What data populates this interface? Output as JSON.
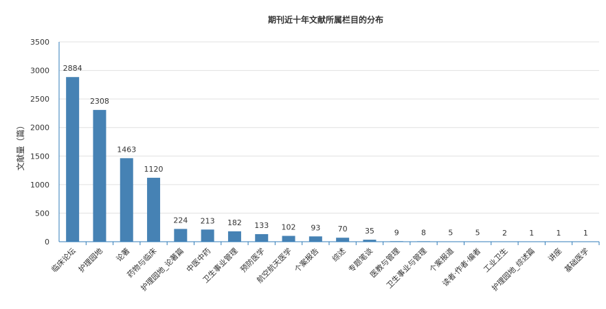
{
  "chart_data": {
    "type": "bar",
    "title": "期刊近十年文献所属栏目的分布",
    "xlabel": "",
    "ylabel": "文献量（篇）",
    "ylim": [
      0,
      3500
    ],
    "yticks": [
      0,
      500,
      1000,
      1500,
      2000,
      2500,
      3000,
      3500
    ],
    "grid": true,
    "legend": "none",
    "bar_color": "#4682b4",
    "categories": [
      "临床论坛",
      "护理园地",
      "论著",
      "药物与临床",
      "护理园地_论著篇",
      "中医中药",
      "卫生事业管理",
      "预防医学",
      "航空航天医学",
      "个案报告",
      "综述",
      "专题笔谈",
      "医教与管理",
      "卫生事业与管理",
      "个案报道",
      "读者·作者·编者",
      "工业卫生",
      "护理园地_综述篇",
      "讲座",
      "基础医学"
    ],
    "values": [
      2884,
      2308,
      1463,
      1120,
      224,
      213,
      182,
      133,
      102,
      93,
      70,
      35,
      9,
      8,
      5,
      5,
      2,
      1,
      1,
      1
    ]
  }
}
